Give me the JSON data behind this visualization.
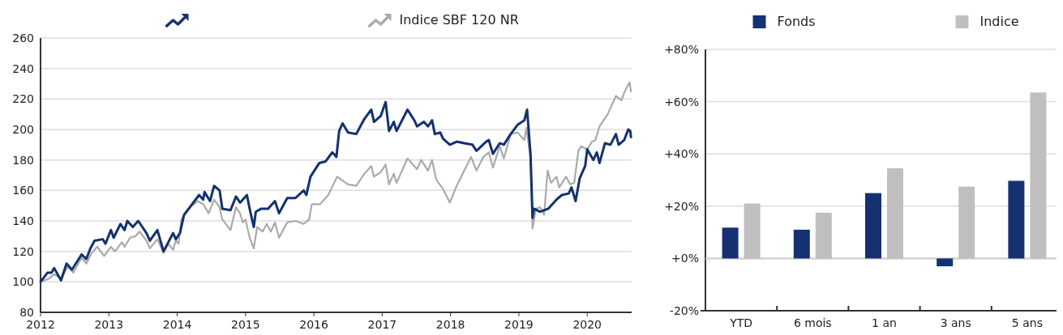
{
  "chart_data": [
    {
      "type": "line",
      "xlim": [
        2012,
        2020.65
      ],
      "xticks": [
        2012,
        2013,
        2014,
        2015,
        2016,
        2017,
        2018,
        2019,
        2020
      ],
      "ylim": [
        80,
        260
      ],
      "yticks": [
        80,
        100,
        120,
        140,
        160,
        180,
        200,
        220,
        240,
        260
      ],
      "grid": "y",
      "legend": "top",
      "series": [
        {
          "color": "#14316f",
          "x": [
            2012.0,
            2012.1,
            2012.16,
            2012.2,
            2012.3,
            2012.38,
            2012.46,
            2012.6,
            2012.67,
            2012.73,
            2012.79,
            2012.91,
            2012.95,
            2013.03,
            2013.07,
            2013.17,
            2013.23,
            2013.27,
            2013.35,
            2013.43,
            2013.55,
            2013.6,
            2013.71,
            2013.8,
            2013.87,
            2013.94,
            2013.98,
            2014.04,
            2014.1,
            2014.22,
            2014.32,
            2014.38,
            2014.4,
            2014.48,
            2014.54,
            2014.62,
            2014.66,
            2014.78,
            2014.86,
            2014.92,
            2015.02,
            2015.06,
            2015.12,
            2015.15,
            2015.23,
            2015.33,
            2015.43,
            2015.49,
            2015.61,
            2015.73,
            2015.85,
            2015.89,
            2015.95,
            2016.08,
            2016.17,
            2016.27,
            2016.33,
            2016.37,
            2016.42,
            2016.5,
            2016.62,
            2016.74,
            2016.84,
            2016.88,
            2016.98,
            2017.05,
            2017.1,
            2017.17,
            2017.21,
            2017.37,
            2017.47,
            2017.51,
            2017.61,
            2017.67,
            2017.73,
            2017.77,
            2017.85,
            2017.89,
            2017.99,
            2018.09,
            2018.2,
            2018.32,
            2018.38,
            2018.52,
            2018.56,
            2018.62,
            2018.72,
            2018.78,
            2018.88,
            2018.98,
            2019.08,
            2019.12,
            2019.17,
            2019.2,
            2019.22,
            2019.31,
            2019.43,
            2019.55,
            2019.63,
            2019.73,
            2019.77,
            2019.83,
            2019.89,
            2019.97,
            2020.0,
            2020.09,
            2020.14,
            2020.18,
            2020.26,
            2020.34,
            2020.42,
            2020.46,
            2020.54,
            2020.6,
            2020.63,
            2020.64
          ],
          "values": [
            100,
            106,
            106,
            109,
            101,
            112,
            108,
            118,
            115,
            122,
            127,
            128,
            125,
            134,
            129,
            138,
            134,
            140,
            136,
            140,
            132,
            127,
            134,
            120,
            126,
            132,
            128,
            132,
            144,
            151,
            157,
            154,
            159,
            153,
            163,
            160,
            148,
            147,
            156,
            152,
            157,
            148,
            136,
            146,
            148,
            148,
            153,
            145,
            155,
            155,
            160,
            157,
            169,
            178,
            179,
            185,
            182,
            199,
            204,
            198,
            197,
            207,
            213,
            205,
            209,
            218,
            199,
            205,
            199,
            213,
            206,
            202,
            205,
            202,
            206,
            197,
            198,
            194,
            190,
            192,
            191,
            190,
            186,
            192,
            193,
            184,
            191,
            190,
            197,
            203,
            206,
            213,
            184,
            142,
            148,
            146,
            148,
            154,
            157,
            158,
            162,
            153,
            168,
            176,
            187,
            180,
            185,
            178,
            191,
            190,
            197,
            190,
            193,
            200,
            199,
            195
          ]
        },
        {
          "name": "Indice SBF 120 NR",
          "color": "#aaaaaa",
          "x": [
            2012.0,
            2012.12,
            2012.2,
            2012.3,
            2012.4,
            2012.48,
            2012.6,
            2012.67,
            2012.75,
            2012.83,
            2012.93,
            2013.03,
            2013.09,
            2013.19,
            2013.23,
            2013.31,
            2013.39,
            2013.45,
            2013.55,
            2013.6,
            2013.71,
            2013.8,
            2013.87,
            2013.94,
            2013.98,
            2014.02,
            2014.06,
            2014.18,
            2014.3,
            2014.38,
            2014.46,
            2014.54,
            2014.62,
            2014.66,
            2014.78,
            2014.86,
            2014.92,
            2014.96,
            2015.0,
            2015.06,
            2015.12,
            2015.17,
            2015.25,
            2015.31,
            2015.37,
            2015.43,
            2015.49,
            2015.61,
            2015.73,
            2015.85,
            2015.93,
            2015.97,
            2016.09,
            2016.21,
            2016.34,
            2016.5,
            2016.62,
            2016.74,
            2016.84,
            2016.88,
            2016.98,
            2017.05,
            2017.1,
            2017.17,
            2017.21,
            2017.37,
            2017.47,
            2017.51,
            2017.57,
            2017.67,
            2017.73,
            2017.79,
            2017.89,
            2017.99,
            2018.09,
            2018.2,
            2018.3,
            2018.38,
            2018.48,
            2018.56,
            2018.62,
            2018.72,
            2018.78,
            2018.88,
            2018.98,
            2019.08,
            2019.11,
            2019.17,
            2019.2,
            2019.25,
            2019.31,
            2019.37,
            2019.42,
            2019.47,
            2019.55,
            2019.59,
            2019.69,
            2019.75,
            2019.81,
            2019.87,
            2019.91,
            2020.0,
            2020.07,
            2020.12,
            2020.18,
            2020.3,
            2020.42,
            2020.5,
            2020.54,
            2020.62,
            2020.64
          ],
          "values": [
            100,
            102,
            105,
            102,
            110,
            106,
            116,
            112,
            119,
            123,
            117,
            123,
            120,
            126,
            123,
            129,
            130,
            133,
            127,
            122,
            128,
            119,
            125,
            121,
            127,
            125,
            141,
            149,
            153,
            151,
            145,
            154,
            149,
            141,
            134,
            149,
            145,
            139,
            141,
            129,
            122,
            136,
            133,
            138,
            133,
            139,
            129,
            139,
            140,
            138,
            141,
            151,
            151,
            157,
            169,
            164,
            163,
            171,
            176,
            169,
            172,
            177,
            164,
            171,
            165,
            181,
            176,
            174,
            180,
            173,
            180,
            167,
            161,
            152,
            163,
            173,
            182,
            173,
            182,
            185,
            175,
            189,
            181,
            197,
            198,
            193,
            201,
            181,
            135,
            148,
            149,
            144,
            173,
            165,
            169,
            162,
            169,
            164,
            165,
            186,
            189,
            187,
            192,
            193,
            202,
            210,
            222,
            219,
            224,
            231,
            225
          ]
        }
      ]
    },
    {
      "type": "bar",
      "categories": [
        "YTD",
        "6 mois",
        "1 an",
        "3 ans",
        "5 ans"
      ],
      "ylim": [
        -20,
        80
      ],
      "yticks": [
        {
          "value": -20,
          "label": "-20%"
        },
        {
          "value": 0,
          "label": "+0%"
        },
        {
          "value": 20,
          "label": "+20%"
        },
        {
          "value": 40,
          "label": "+40%"
        },
        {
          "value": 60,
          "label": "+60%"
        },
        {
          "value": 80,
          "label": "+80%"
        }
      ],
      "grid": "y",
      "legend": "top",
      "series": [
        {
          "name": "Fonds",
          "color": "#163172",
          "values": [
            11.8,
            11,
            25,
            -3,
            29.7
          ]
        },
        {
          "name": "Indice",
          "color": "#bfbfbf",
          "values": [
            21,
            17.5,
            34.5,
            27.5,
            63.5
          ]
        }
      ]
    }
  ]
}
